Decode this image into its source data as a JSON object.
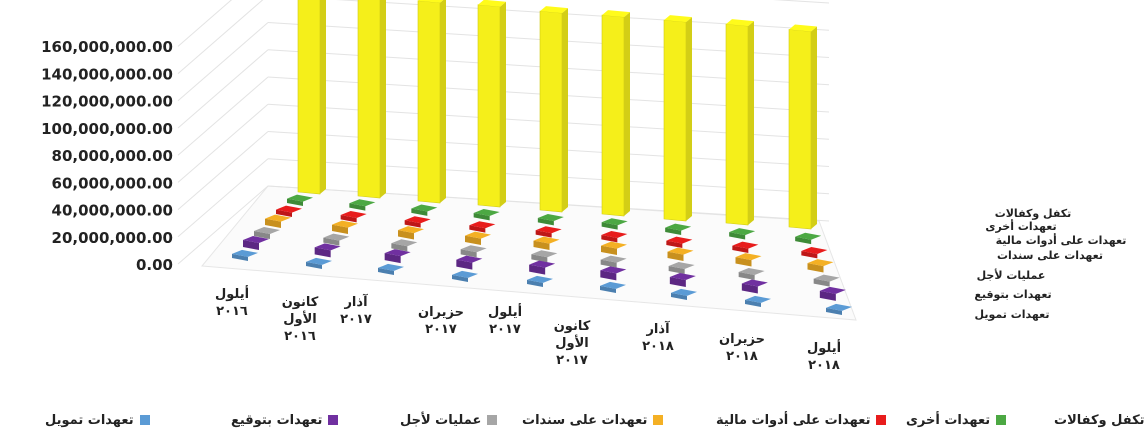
{
  "chart_data": {
    "type": "bar",
    "title": "",
    "xlabel": "",
    "ylabel": "",
    "ylim": [
      0,
      160000000
    ],
    "y_ticks": [
      "0.00",
      "20,000,000.00",
      "40,000,000.00",
      "60,000,000.00",
      "80,000,000.00",
      "100,000,000.00",
      "120,000,000.00",
      "140,000,000.00",
      "160,000,000.00"
    ],
    "categories": [
      [
        "أيلول",
        "٢٠١٦"
      ],
      [
        "كانون",
        "الأول",
        "٢٠١٦"
      ],
      [
        "آذار",
        "٢٠١٧"
      ],
      [
        "حزيران",
        "٢٠١٧"
      ],
      [
        "أيلول",
        "٢٠١٧"
      ],
      [
        "كانون",
        "الأول",
        "٢٠١٧"
      ],
      [
        "آذار",
        "٢٠١٨"
      ],
      [
        "حزيران",
        "٢٠١٨"
      ],
      [
        "أيلول",
        "٢٠١٨"
      ]
    ],
    "series": [
      {
        "name": "تعهدات تمويل",
        "color": "#5b9bd5",
        "values": [
          800000,
          800000,
          800000,
          800000,
          800000,
          800000,
          800000,
          800000,
          800000
        ]
      },
      {
        "name": "تعهدات بتوقيع",
        "color": "#7030a0",
        "values": [
          3000000,
          3000000,
          3000000,
          3000000,
          3000000,
          3000000,
          3000000,
          3000000,
          3000000
        ]
      },
      {
        "name": "عمليات لأجل",
        "color": "#a6a6a6",
        "values": [
          1500000,
          1500000,
          1500000,
          1500000,
          1500000,
          1500000,
          1500000,
          1500000,
          1500000
        ]
      },
      {
        "name": "تعهدات على سندات",
        "color": "#f4b024",
        "values": [
          2500000,
          2500000,
          2500000,
          2500000,
          2500000,
          2500000,
          2500000,
          2500000,
          2500000
        ]
      },
      {
        "name": "تعهدات على أدوات مالية",
        "color": "#e81c1c",
        "values": [
          1000000,
          1000000,
          1000000,
          1000000,
          1000000,
          1000000,
          1000000,
          1000000,
          1000000
        ]
      },
      {
        "name": "تعهدات أخرى",
        "color": "#4ca843",
        "values": [
          1000000,
          1000000,
          1000000,
          1000000,
          1000000,
          1000000,
          1000000,
          1000000,
          1000000
        ]
      },
      {
        "name": "تكفل وكفالات",
        "color": "#f5ef1a",
        "values": [
          144000000,
          148000000,
          147000000,
          147000000,
          146000000,
          146000000,
          146000000,
          146000000,
          145000000
        ]
      }
    ],
    "grid": true,
    "legend_position": "bottom"
  }
}
